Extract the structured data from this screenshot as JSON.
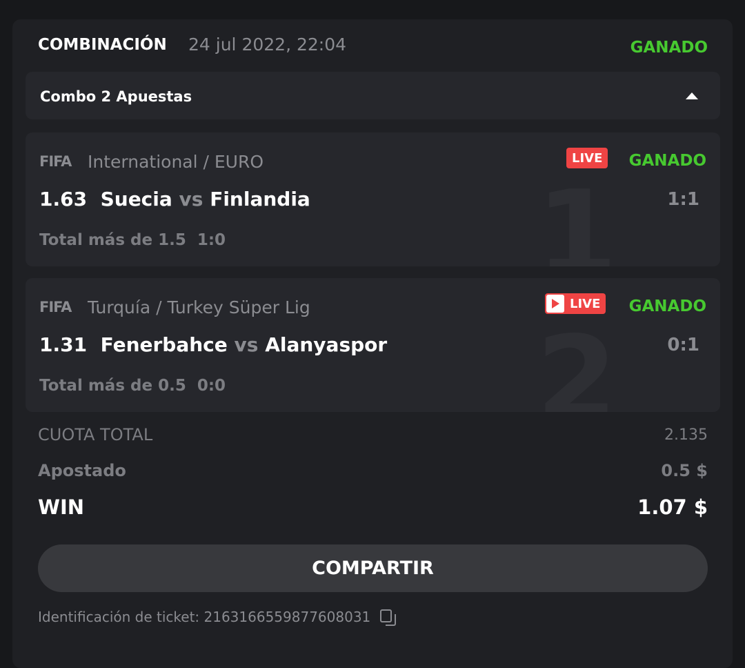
{
  "header": {
    "title": "COMBINACIÓN",
    "date": "24 jul 2022, 22:04",
    "status": "GANADO"
  },
  "combo": {
    "label": "Combo 2 Apuestas"
  },
  "legs": [
    {
      "index": "1",
      "sport_logo": "FIFA",
      "league": "International / EURO",
      "live": "LIVE",
      "status": "GANADO",
      "odds": "1.63",
      "home": "Suecia",
      "vs": "vs",
      "away": "Finlandia",
      "market": "Total más de 1.5",
      "market_score": "1:0",
      "score": "1:1"
    },
    {
      "index": "2",
      "sport_logo": "FIFA",
      "league": "Turquía / Turkey Süper Lig",
      "live": "LIVE",
      "status": "GANADO",
      "odds": "1.31",
      "home": "Fenerbahce",
      "vs": "vs",
      "away": "Alanyaspor",
      "market": "Total más de 0.5",
      "market_score": "0:0",
      "score": "0:1"
    }
  ],
  "summary": {
    "total_odds_label": "CUOTA TOTAL",
    "total_odds": "2.135",
    "stake_label": "Apostado",
    "stake": "0.5 $",
    "win_label": "WIN",
    "win": "1.07 $"
  },
  "share_label": "COMPARTIR",
  "ticket": {
    "label": "Identificación de ticket: 2163166559877608031"
  },
  "colors": {
    "win": "#47c930",
    "live": "#ef4444"
  }
}
